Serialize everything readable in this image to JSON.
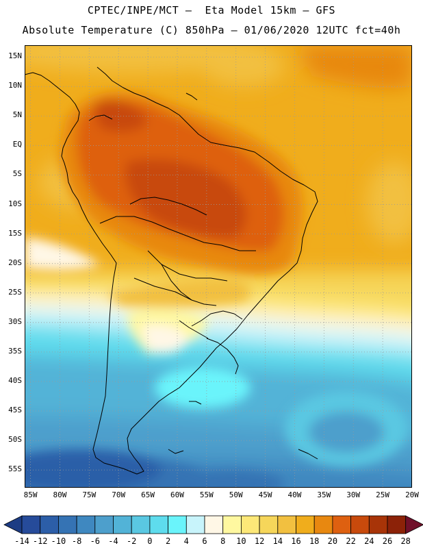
{
  "header": {
    "title_line1": "CPTEC/INPE/MCT –  Eta Model 15km – GFS",
    "title_line2": "Absolute Temperature (C) 850hPa – 01/06/2020 12UTC fct=40h"
  },
  "map": {
    "lat_labels": [
      "15N",
      "10N",
      "5N",
      "EQ",
      "5S",
      "10S",
      "15S",
      "20S",
      "25S",
      "30S",
      "35S",
      "40S",
      "45S",
      "50S",
      "55S"
    ],
    "lon_labels": [
      "85W",
      "80W",
      "75W",
      "70W",
      "65W",
      "60W",
      "55W",
      "50W",
      "45W",
      "40W",
      "35W",
      "30W",
      "25W",
      "20W"
    ],
    "lat_values": [
      15,
      10,
      5,
      0,
      -5,
      -10,
      -15,
      -20,
      -25,
      -30,
      -35,
      -40,
      -45,
      -50,
      -55
    ],
    "lon_values": [
      -85,
      -80,
      -75,
      -70,
      -65,
      -60,
      -55,
      -50,
      -45,
      -40,
      -35,
      -30,
      -25,
      -20
    ],
    "lat_range": [
      -58,
      17
    ],
    "lon_range": [
      -86,
      -20
    ],
    "grid_color": "#9a9a9a",
    "coast_color": "#000000"
  },
  "colorbar": {
    "labels": [
      "-14",
      "-12",
      "-10",
      "-8",
      "-6",
      "-4",
      "-2",
      "0",
      "2",
      "4",
      "6",
      "8",
      "10",
      "12",
      "14",
      "16",
      "18",
      "20",
      "22",
      "24",
      "26",
      "28"
    ],
    "colors": [
      "#264b9a",
      "#2c5ea8",
      "#3573b4",
      "#3f88c0",
      "#4d9fcc",
      "#52b3d7",
      "#5ac8e2",
      "#5edced",
      "#6af4fb",
      "#c8f4fb",
      "#fff7e6",
      "#fff8a0",
      "#fde878",
      "#f6d65a",
      "#f2c040",
      "#f0ad1c",
      "#e88810",
      "#de6010",
      "#c84a0c",
      "#a83408",
      "#8c2208"
    ],
    "under_color": "#1c3c84",
    "over_color": "#70102a"
  }
}
